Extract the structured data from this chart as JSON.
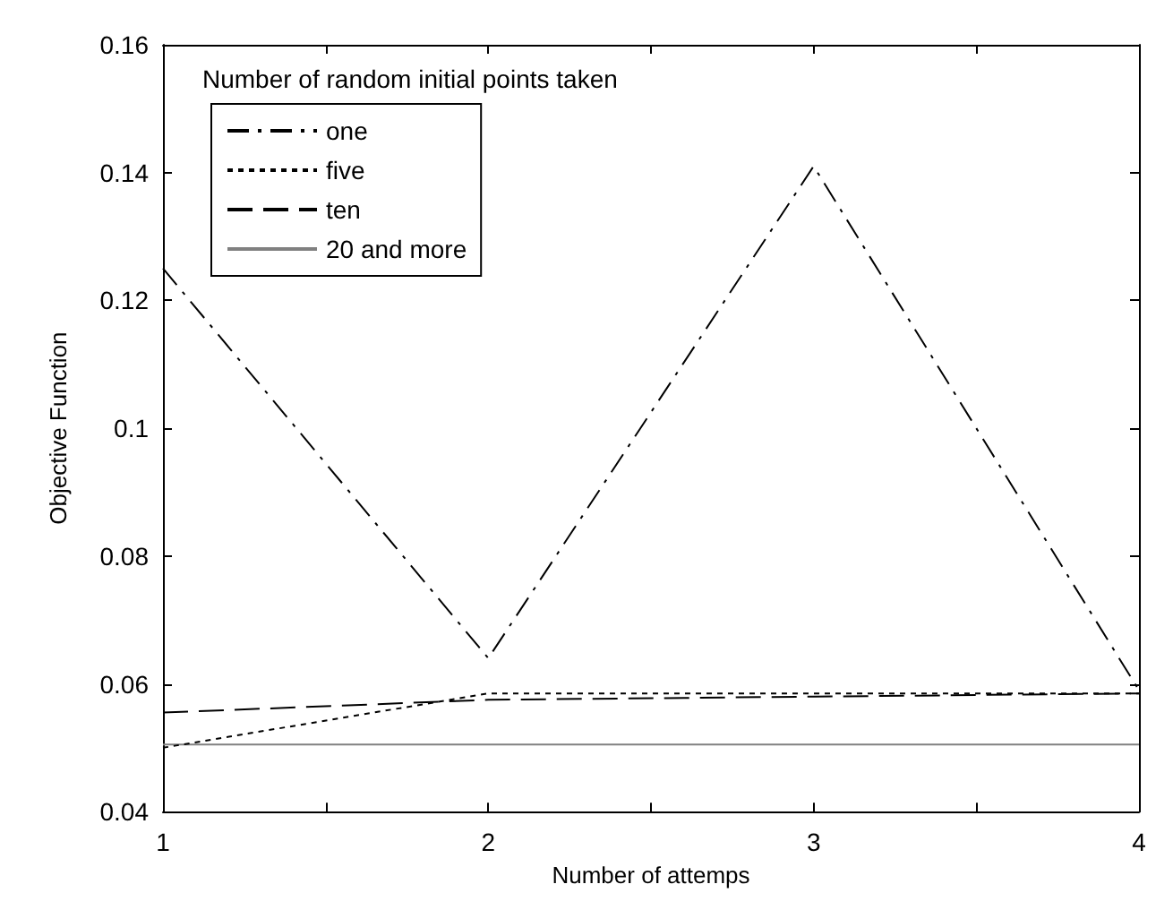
{
  "chart_data": {
    "type": "line",
    "xlabel": "Number of attemps",
    "ylabel": "Objective Function",
    "legend_title": "Number of random initial points taken",
    "x": [
      1,
      2,
      3,
      4
    ],
    "series": [
      {
        "name": "one",
        "color": "#000000",
        "line_style": "dashdot",
        "values": [
          0.125,
          0.064,
          0.141,
          0.059
        ]
      },
      {
        "name": "five",
        "color": "#000000",
        "line_style": "dotted",
        "values": [
          0.05,
          0.0585,
          0.0585,
          0.0585
        ]
      },
      {
        "name": "ten",
        "color": "#000000",
        "line_style": "dashed",
        "values": [
          0.0555,
          0.0575,
          0.058,
          0.0585
        ]
      },
      {
        "name": "20 and more",
        "color": "#808080",
        "line_style": "solid",
        "values": [
          0.0505,
          0.0505,
          0.0505,
          0.0505
        ]
      }
    ],
    "xlim": [
      1,
      4
    ],
    "xticks": [
      1,
      {
        "value": 1.5,
        "label": null
      },
      2,
      {
        "value": 2.5,
        "label": null
      },
      3,
      {
        "value": 3.5,
        "label": null
      },
      4
    ],
    "ylim": [
      0.04,
      0.16
    ],
    "yticks": [
      0.04,
      0.06,
      0.08,
      0.1,
      0.12,
      0.14,
      0.16
    ],
    "grid": false,
    "legend": "top left",
    "marker": "none"
  }
}
